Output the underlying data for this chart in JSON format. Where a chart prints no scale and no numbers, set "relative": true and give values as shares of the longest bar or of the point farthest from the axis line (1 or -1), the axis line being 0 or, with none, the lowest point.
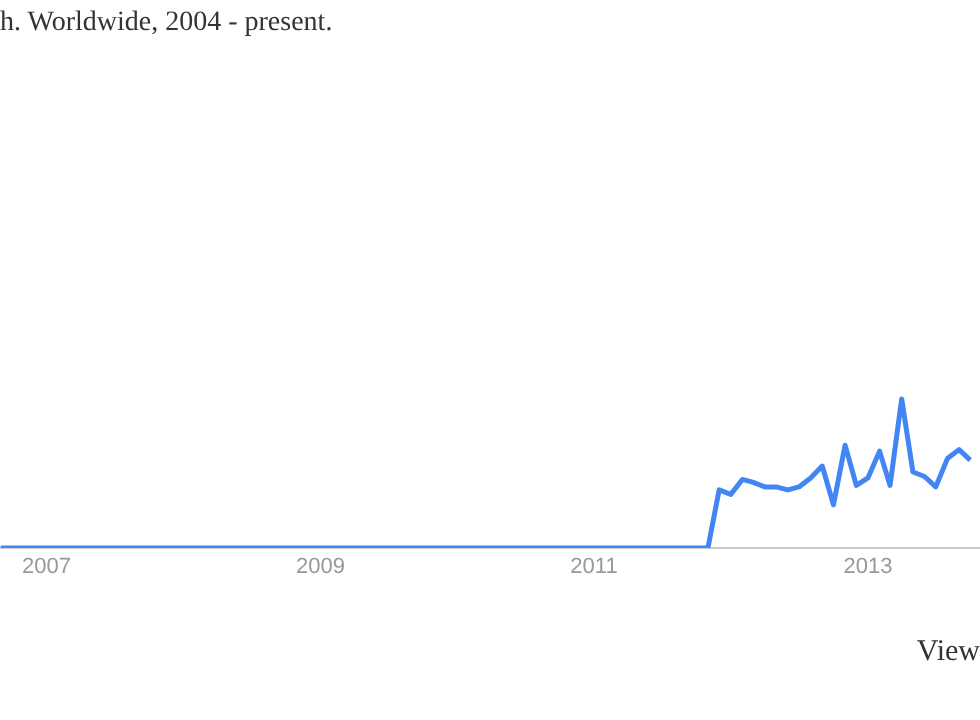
{
  "chart_data": {
    "type": "line",
    "title": "h. Worldwide, 2004 - present.",
    "annotations": [
      "View"
    ],
    "x": [
      "2006-09",
      "2007-01",
      "2008-01",
      "2009-01",
      "2010-01",
      "2011-01",
      "2011-11",
      "2011-12",
      "2012-01",
      "2012-02",
      "2012-03",
      "2012-04",
      "2012-05",
      "2012-06",
      "2012-07",
      "2012-08",
      "2012-09",
      "2012-10",
      "2012-11",
      "2012-12",
      "2013-01",
      "2013-02",
      "2013-03",
      "2013-04",
      "2013-05",
      "2013-06",
      "2013-07",
      "2013-08",
      "2013-09",
      "2013-10"
    ],
    "values": [
      0,
      0,
      0,
      0,
      0,
      0,
      0,
      0.39,
      0.36,
      0.46,
      0.44,
      0.41,
      0.41,
      0.39,
      0.41,
      0.47,
      0.55,
      0.29,
      0.69,
      0.42,
      0.47,
      0.65,
      0.42,
      1,
      0.51,
      0.48,
      0.41,
      0.6,
      0.66,
      0.59
    ],
    "relative": true,
    "color": "#4285f4",
    "marker": "none",
    "legend": false,
    "xlim": [
      "2006-08-30",
      "2013-10-27"
    ],
    "xticks": [
      "2007",
      "2009",
      "2011",
      "2013"
    ]
  }
}
